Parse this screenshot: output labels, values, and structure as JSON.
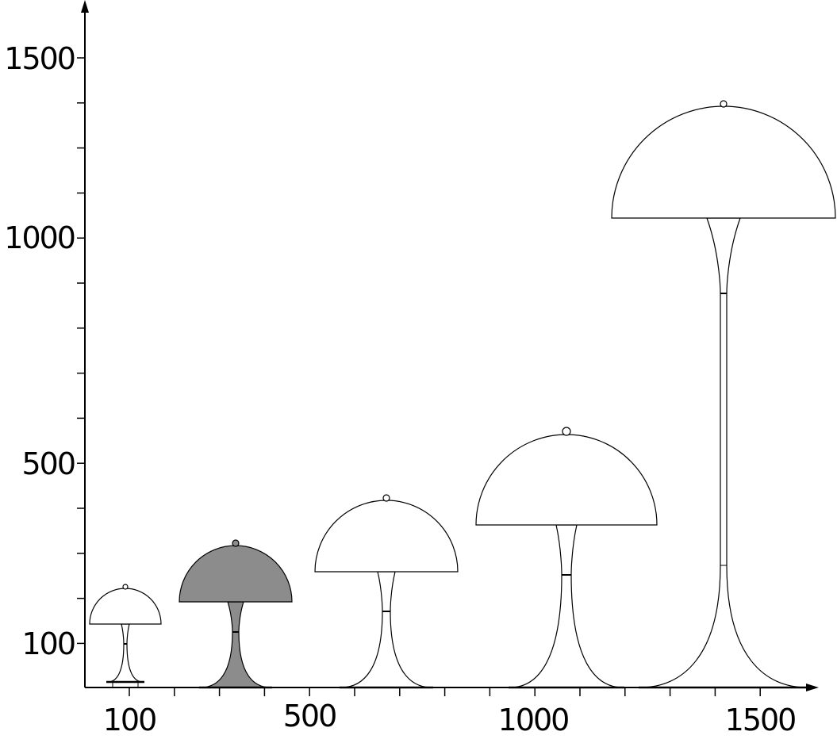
{
  "x_axis": {
    "labels": [
      100,
      500,
      1000,
      1500
    ]
  },
  "y_axis": {
    "labels": [
      1500,
      1000,
      500,
      100
    ]
  }
}
